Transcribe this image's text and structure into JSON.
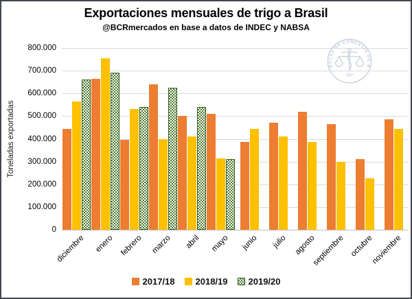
{
  "header": {
    "title": "Exportaciones mensuales de trigo a Brasil",
    "subtitle": "@BCRmercados en base a datos de INDEC y NABSA"
  },
  "watermark": {
    "text": "BOLSA DE COMERCIO DE ROSARIO"
  },
  "colors": {
    "orange": "#ED7D31",
    "yellow": "#FFC000",
    "green": "#4F7B2F",
    "green_border": "#2F5A1D",
    "gridline": "#D9D9D9",
    "axis_line": "#BFBFBF",
    "watermark": "#C3CAD8"
  },
  "chart_data": {
    "type": "bar",
    "title": "Exportaciones mensuales de trigo a Brasil",
    "subtitle": "@BCRmercados en base a datos de INDEC y NABSA",
    "xlabel": "",
    "ylabel": "Toneladas exportadas",
    "ylim": [
      0,
      800000
    ],
    "ytick_step": 100000,
    "ytick_labels": [
      "800.000",
      "700.000",
      "600.000",
      "500.000",
      "400.000",
      "300.000",
      "200.000",
      "100.000",
      "0"
    ],
    "grid": true,
    "legend_position": "bottom",
    "categories": [
      "diciembre",
      "enero",
      "febrero",
      "marzo",
      "abril",
      "mayo",
      "junio",
      "julio",
      "agosto",
      "septiembre",
      "octubre",
      "noviembre"
    ],
    "series": [
      {
        "name": "2017/18",
        "color": "#ED7D31",
        "pattern": "solid",
        "values": [
          445000,
          665000,
          395000,
          640000,
          500000,
          510000,
          385000,
          470000,
          520000,
          465000,
          310000,
          485000
        ]
      },
      {
        "name": "2018/19",
        "color": "#FFC000",
        "pattern": "solid",
        "values": [
          565000,
          755000,
          530000,
          400000,
          410000,
          315000,
          445000,
          410000,
          385000,
          300000,
          225000,
          445000
        ]
      },
      {
        "name": "2019/20",
        "color": "#4F7B2F",
        "pattern": "checker",
        "values": [
          660000,
          690000,
          540000,
          625000,
          540000,
          310000,
          null,
          null,
          null,
          null,
          null,
          null
        ]
      }
    ]
  }
}
